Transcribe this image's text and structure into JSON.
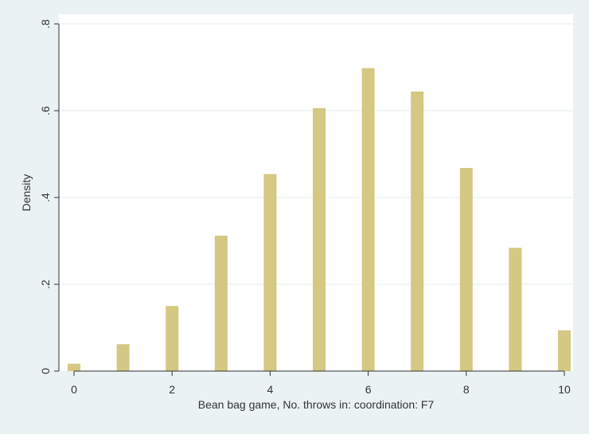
{
  "chart_data": {
    "type": "bar",
    "title": "",
    "xlabel": "Bean bag game, No. throws in: coordination: F7",
    "ylabel": "Density",
    "x": [
      0,
      1,
      2,
      3,
      4,
      5,
      6,
      7,
      8,
      9,
      10
    ],
    "values": [
      0.017,
      0.062,
      0.15,
      0.312,
      0.454,
      0.606,
      0.698,
      0.644,
      0.468,
      0.284,
      0.094
    ],
    "xlim": [
      -0.2,
      10.2
    ],
    "ylim": [
      0,
      0.8
    ],
    "xticks": [
      0,
      2,
      4,
      6,
      8,
      10
    ],
    "xtick_labels": [
      "0",
      "2",
      "4",
      "6",
      "8",
      "10"
    ],
    "yticks": [
      0,
      0.2,
      0.4,
      0.6,
      0.8
    ],
    "ytick_labels": [
      "0",
      ".2",
      ".4",
      ".6",
      ".8"
    ],
    "grid": true,
    "legend": "none",
    "colors": {
      "bar": "#d4c882",
      "plot_bg": "#ffffff",
      "page_bg": "#eaf2f3",
      "grid": "#e6eeef",
      "axis": "#333333"
    }
  }
}
